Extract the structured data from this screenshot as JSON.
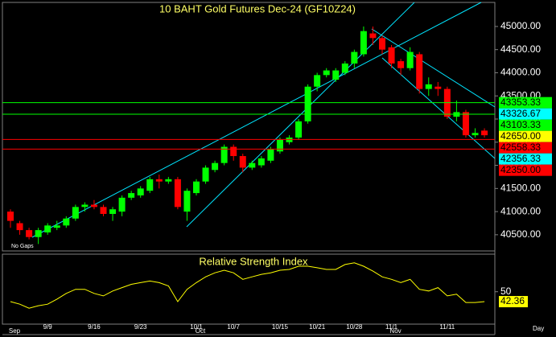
{
  "chart_data": [
    {
      "type": "candlestick",
      "title": "10 BAHT  Gold Futures Dec-24  (GF10Z24)",
      "categories": [
        null,
        null,
        null,
        null,
        "9/9",
        null,
        null,
        null,
        null,
        "9/16",
        null,
        null,
        null,
        null,
        "9/23",
        null,
        null,
        null,
        null,
        null,
        "10/1",
        null,
        null,
        null,
        "10/7",
        null,
        null,
        null,
        null,
        "10/15",
        null,
        null,
        null,
        "10/21",
        null,
        null,
        null,
        "10/28",
        null,
        null,
        null,
        "11/1",
        null,
        null,
        null,
        null,
        null,
        "11/11",
        null,
        null,
        null,
        null
      ],
      "months": [
        "Sep",
        null,
        null,
        null,
        null,
        null,
        null,
        null,
        null,
        null,
        null,
        null,
        null,
        null,
        null,
        null,
        null,
        null,
        null,
        null,
        "Oct",
        null,
        null,
        null,
        null,
        null,
        null,
        null,
        null,
        null,
        null,
        null,
        null,
        null,
        null,
        null,
        null,
        null,
        null,
        null,
        null,
        "Nov",
        null,
        null,
        null,
        null,
        null,
        null,
        null,
        null,
        null,
        null
      ],
      "open": [
        41000,
        40750,
        40600,
        40450,
        40550,
        40650,
        40700,
        40850,
        41100,
        41150,
        41100,
        40950,
        41000,
        41300,
        41350,
        41450,
        41700,
        41650,
        41700,
        41000,
        41400,
        41650,
        41900,
        42050,
        42400,
        42200,
        41950,
        42000,
        42100,
        42300,
        42500,
        42600,
        42950,
        43700,
        43950,
        43850,
        44000,
        44200,
        44400,
        44850,
        44750,
        44550,
        44250,
        44100,
        44400,
        43650,
        43700,
        43650,
        43050,
        43150,
        42650,
        42750
      ],
      "high": [
        41050,
        40800,
        40650,
        40650,
        40750,
        40800,
        40900,
        41150,
        41200,
        41250,
        41150,
        41100,
        41350,
        41450,
        41550,
        41750,
        41800,
        41750,
        41750,
        41500,
        41700,
        42000,
        42100,
        42450,
        42450,
        42250,
        42100,
        42200,
        42400,
        42600,
        42650,
        43000,
        43750,
        44000,
        44100,
        44100,
        44250,
        44500,
        45000,
        45000,
        44800,
        44600,
        44300,
        44550,
        44450,
        43900,
        43800,
        43700,
        43400,
        43200,
        42800,
        42800
      ],
      "low": [
        40650,
        40500,
        40400,
        40300,
        40500,
        40600,
        40650,
        40800,
        41000,
        41050,
        40900,
        40800,
        40900,
        41250,
        41300,
        41400,
        41500,
        41600,
        41050,
        40800,
        41350,
        41600,
        41850,
        42000,
        42100,
        41850,
        41900,
        41950,
        42050,
        42250,
        42450,
        42550,
        42900,
        43600,
        43900,
        43800,
        43950,
        44100,
        44350,
        44600,
        44400,
        44100,
        43950,
        44050,
        43550,
        43500,
        43500,
        43000,
        42950,
        42600,
        42600,
        42600
      ],
      "close": [
        40800,
        40600,
        40450,
        40600,
        40700,
        40700,
        40850,
        41100,
        41150,
        41100,
        40950,
        41050,
        41300,
        41400,
        41500,
        41700,
        41650,
        41700,
        41100,
        41450,
        41650,
        41950,
        42050,
        42400,
        42200,
        41950,
        42050,
        42150,
        42350,
        42550,
        42600,
        42950,
        43700,
        43950,
        44050,
        44050,
        44200,
        44450,
        44900,
        44750,
        44500,
        44200,
        44100,
        44450,
        43650,
        43750,
        43650,
        43050,
        43150,
        42650,
        42700,
        42650
      ],
      "up_color": "#00ff00",
      "down_color": "#ff0000",
      "ylim": [
        40150,
        45520
      ],
      "yticks": [
        {
          "value": 40500,
          "label": "40500.00"
        },
        {
          "value": 41000,
          "label": "41000.00"
        },
        {
          "value": 41500,
          "label": "41500.00"
        },
        {
          "value": 42000,
          "label": "42000.00"
        },
        {
          "value": 42500,
          "label": "42500.00"
        },
        {
          "value": 43000,
          "label": "43000.00"
        },
        {
          "value": 43500,
          "label": "43500.00"
        },
        {
          "value": 44000,
          "label": "44000.00"
        },
        {
          "value": 44500,
          "label": "44500.00"
        },
        {
          "value": 45000,
          "label": "45000.00"
        }
      ],
      "price_levels": [
        {
          "value": 43353.33,
          "label": "43353.33",
          "color": "#00ff00",
          "line": true
        },
        {
          "value": 43326.67,
          "label": "43326.67",
          "color": "#00ffff",
          "line": false
        },
        {
          "value": 43103.33,
          "label": "43103.33",
          "color": "#00ff00",
          "line": true
        },
        {
          "value": 42650,
          "label": "42650.00",
          "color": "#ffff00",
          "line": false
        },
        {
          "value": 42558.33,
          "label": "42558.33",
          "color": "#ff0000",
          "line": true
        },
        {
          "value": 42356.33,
          "label": "42356.33",
          "color": "#00ffff",
          "line": false
        },
        {
          "value": 42350,
          "label": "42350.00",
          "color": "#ff0000",
          "line": true
        }
      ],
      "note": "No Gaps",
      "x_unit": "Day"
    },
    {
      "type": "line",
      "title": "Relative Strength Index",
      "values": [
        42.4,
        40.4,
        37.3,
        39.2,
        40.4,
        44.3,
        48.7,
        51.9,
        51.9,
        48.7,
        46.8,
        50.6,
        53.2,
        55.7,
        57.0,
        58.3,
        57.0,
        54.5,
        42.4,
        51.9,
        57.0,
        61.5,
        64.6,
        66.6,
        64.6,
        59.6,
        61.5,
        63.4,
        64.6,
        66.6,
        67.2,
        69.7,
        69.7,
        68.5,
        67.2,
        67.2,
        71.0,
        72.3,
        69.7,
        65.9,
        61.5,
        59.6,
        57.0,
        59.6,
        51.9,
        50.6,
        53.2,
        46.8,
        48.1,
        41.7,
        41.7,
        42.36
      ],
      "color": "#ffff00",
      "ylim": [
        25,
        79
      ],
      "yticks": [
        50
      ]
    }
  ]
}
